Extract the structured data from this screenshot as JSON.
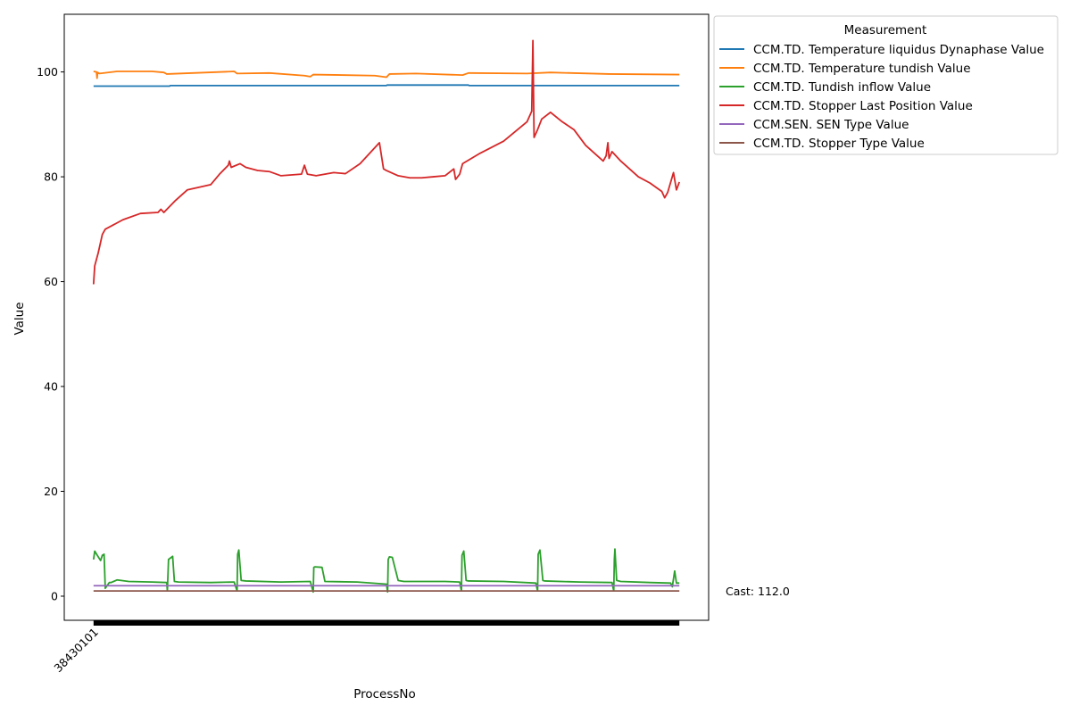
{
  "chart_data": {
    "type": "line",
    "xlabel": "ProcessNo",
    "ylabel": "Value",
    "x_tick_labels": [
      "38430101"
    ],
    "y_ticks": [
      0,
      20,
      40,
      60,
      80,
      100
    ],
    "ylim": [
      -4.6,
      111
    ],
    "xlim": [
      -0.05,
      1.05
    ],
    "grid": false,
    "legend": {
      "title": "Measurement",
      "placement": "outside-top-right"
    },
    "annotation": "Cast: 112.0",
    "series": [
      {
        "name": "CCM.TD. Temperature liquidus Dynaphase Value",
        "color": "#1f77b4",
        "x": [
          0.0,
          0.13,
          0.131,
          0.5,
          0.501,
          0.64,
          0.641,
          1.0
        ],
        "values": [
          97.3,
          97.3,
          97.4,
          97.4,
          97.5,
          97.5,
          97.4,
          97.4
        ]
      },
      {
        "name": "CCM.TD. Temperature tundish Value",
        "color": "#ff7f0e",
        "x": [
          0.0,
          0.005,
          0.006,
          0.007,
          0.01,
          0.04,
          0.1,
          0.12,
          0.125,
          0.24,
          0.245,
          0.3,
          0.36,
          0.37,
          0.375,
          0.48,
          0.5,
          0.505,
          0.55,
          0.63,
          0.64,
          0.74,
          0.78,
          0.88,
          1.0
        ],
        "values": [
          100.1,
          100.0,
          98.8,
          99.9,
          99.7,
          100.1,
          100.1,
          99.9,
          99.6,
          100.1,
          99.7,
          99.8,
          99.3,
          99.1,
          99.5,
          99.3,
          99.0,
          99.6,
          99.7,
          99.4,
          99.8,
          99.7,
          99.9,
          99.6,
          99.5
        ]
      },
      {
        "name": "CCM.TD. Tundish inflow Value",
        "color": "#2ca02c",
        "x": [
          0.0,
          0.002,
          0.008,
          0.012,
          0.015,
          0.018,
          0.02,
          0.023,
          0.027,
          0.03,
          0.04,
          0.06,
          0.1,
          0.125,
          0.126,
          0.128,
          0.135,
          0.138,
          0.145,
          0.2,
          0.24,
          0.245,
          0.246,
          0.248,
          0.252,
          0.26,
          0.32,
          0.37,
          0.375,
          0.376,
          0.378,
          0.39,
          0.395,
          0.45,
          0.5,
          0.502,
          0.503,
          0.505,
          0.51,
          0.52,
          0.525,
          0.53,
          0.6,
          0.625,
          0.628,
          0.629,
          0.632,
          0.636,
          0.64,
          0.7,
          0.755,
          0.758,
          0.759,
          0.762,
          0.767,
          0.77,
          0.83,
          0.885,
          0.888,
          0.889,
          0.89,
          0.893,
          0.9,
          0.95,
          0.985,
          0.988,
          0.992,
          0.995,
          1.0
        ],
        "values": [
          7.0,
          8.6,
          7.5,
          6.8,
          7.8,
          8.0,
          1.5,
          2.0,
          2.6,
          2.6,
          3.1,
          2.8,
          2.7,
          2.6,
          1.0,
          7.0,
          7.6,
          2.8,
          2.7,
          2.6,
          2.7,
          1.0,
          8.0,
          8.8,
          3.0,
          2.9,
          2.7,
          2.8,
          0.8,
          5.5,
          5.6,
          5.5,
          2.8,
          2.7,
          2.3,
          0.8,
          7.0,
          7.5,
          7.4,
          3.0,
          2.9,
          2.8,
          2.8,
          2.7,
          1.0,
          7.8,
          8.6,
          3.0,
          2.9,
          2.8,
          2.5,
          1.0,
          8.0,
          8.8,
          3.0,
          2.9,
          2.7,
          2.6,
          1.0,
          7.0,
          9.0,
          3.0,
          2.8,
          2.6,
          2.5,
          1.8,
          4.8,
          2.5,
          2.5
        ]
      },
      {
        "name": "CCM.TD. Stopper Last Position Value",
        "color": "#d62728",
        "x": [
          0.0,
          0.002,
          0.008,
          0.015,
          0.02,
          0.05,
          0.08,
          0.11,
          0.115,
          0.12,
          0.14,
          0.16,
          0.2,
          0.215,
          0.23,
          0.232,
          0.235,
          0.25,
          0.26,
          0.28,
          0.3,
          0.32,
          0.355,
          0.36,
          0.365,
          0.38,
          0.41,
          0.43,
          0.455,
          0.488,
          0.495,
          0.5,
          0.52,
          0.54,
          0.56,
          0.58,
          0.6,
          0.615,
          0.618,
          0.625,
          0.63,
          0.66,
          0.7,
          0.74,
          0.748,
          0.75,
          0.752,
          0.758,
          0.765,
          0.78,
          0.8,
          0.82,
          0.84,
          0.87,
          0.875,
          0.878,
          0.88,
          0.885,
          0.9,
          0.93,
          0.95,
          0.97,
          0.975,
          0.98,
          0.99,
          0.995,
          1.0
        ],
        "values": [
          59.5,
          63.0,
          65.5,
          69.0,
          70.0,
          71.8,
          73.0,
          73.2,
          73.8,
          73.2,
          75.5,
          77.5,
          78.5,
          80.5,
          82.2,
          83.0,
          81.8,
          82.5,
          81.8,
          81.2,
          81.0,
          80.2,
          80.5,
          82.2,
          80.5,
          80.2,
          80.8,
          80.6,
          82.5,
          86.5,
          81.5,
          81.2,
          80.2,
          79.8,
          79.8,
          80.0,
          80.2,
          81.5,
          79.5,
          80.5,
          82.5,
          84.5,
          86.8,
          90.5,
          92.5,
          106.0,
          87.5,
          89.0,
          91.0,
          92.3,
          90.5,
          89.0,
          86.0,
          83.0,
          84.0,
          86.5,
          83.5,
          84.8,
          83.0,
          80.0,
          78.8,
          77.2,
          76.0,
          77.0,
          80.8,
          77.5,
          79.0
        ]
      },
      {
        "name": "CCM.SEN. SEN Type Value",
        "color": "#9467bd",
        "x": [
          0.0,
          1.0
        ],
        "values": [
          2.0,
          2.0
        ]
      },
      {
        "name": "CCM.TD. Stopper Type Value",
        "color": "#8c564b",
        "x": [
          0.0,
          1.0
        ],
        "values": [
          1.0,
          1.0
        ]
      }
    ]
  }
}
